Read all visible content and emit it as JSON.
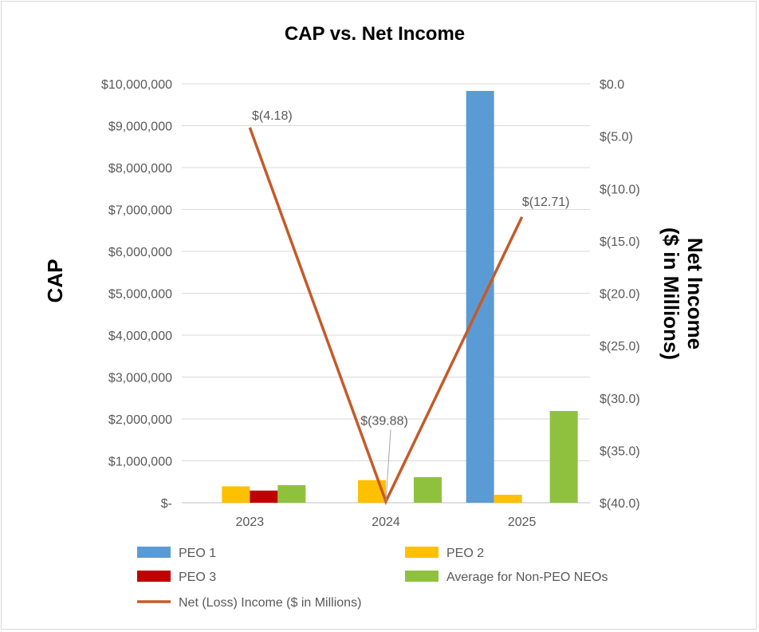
{
  "chart_data": {
    "type": "bar",
    "title": "CAP vs. Net Income",
    "categories": [
      "2023",
      "2024",
      "2025"
    ],
    "ylabel": "CAP",
    "y2label_lines": [
      "Net Income",
      "($ in Millions)"
    ],
    "ylim": [
      0,
      10000000
    ],
    "y_ticks": [
      0,
      1000000,
      2000000,
      3000000,
      4000000,
      5000000,
      6000000,
      7000000,
      8000000,
      9000000,
      10000000
    ],
    "y_tick_labels": [
      "$-",
      "$1,000,000",
      "$2,000,000",
      "$3,000,000",
      "$4,000,000",
      "$5,000,000",
      "$6,000,000",
      "$7,000,000",
      "$8,000,000",
      "$9,000,000",
      "$10,000,000"
    ],
    "y2lim": [
      -40,
      0
    ],
    "y2_ticks": [
      0,
      -5,
      -10,
      -15,
      -20,
      -25,
      -30,
      -35,
      -40
    ],
    "y2_tick_labels": [
      "$0.0",
      "$(5.0)",
      "$(10.0)",
      "$(15.0)",
      "$(20.0)",
      "$(25.0)",
      "$(30.0)",
      "$(35.0)",
      "$(40.0)"
    ],
    "grid": true,
    "legend_position": "bottom",
    "series": [
      {
        "name": "PEO 1",
        "type": "bar",
        "color": "#5b9bd5",
        "values": [
          null,
          null,
          9830000
        ]
      },
      {
        "name": "PEO 2",
        "type": "bar",
        "color": "#ffc000",
        "values": [
          390000,
          540000,
          190000
        ]
      },
      {
        "name": "PEO 3",
        "type": "bar",
        "color": "#c00000",
        "values": [
          290000,
          null,
          null
        ]
      },
      {
        "name": "Average for Non-PEO NEOs",
        "type": "bar",
        "color": "#8fc13f",
        "values": [
          420000,
          610000,
          2190000
        ]
      },
      {
        "name": "Net (Loss) Income ($ in Millions)",
        "type": "line",
        "axis": "right",
        "color": "#c55a28",
        "values": [
          -4.18,
          -39.88,
          -12.71
        ],
        "data_labels": [
          "$(4.18)",
          "$(39.88)",
          "$(12.71)"
        ]
      }
    ]
  }
}
